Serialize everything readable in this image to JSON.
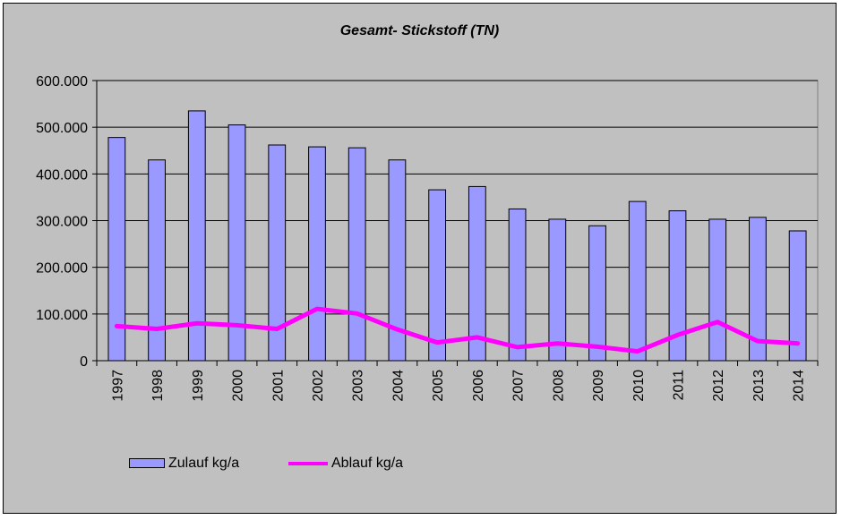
{
  "chart_data": {
    "type": "bar",
    "title": "Gesamt- Stickstoff (TN)",
    "xlabel": "",
    "ylabel": "",
    "categories": [
      "1997",
      "1998",
      "1999",
      "2000",
      "2001",
      "2002",
      "2003",
      "2004",
      "2005",
      "2006",
      "2007",
      "2008",
      "2009",
      "2010",
      "2011",
      "2012",
      "2013",
      "2014"
    ],
    "ylim": [
      0,
      600000
    ],
    "yticks": [
      {
        "value": 0,
        "label": "0"
      },
      {
        "value": 100000,
        "label": "100.000"
      },
      {
        "value": 200000,
        "label": "200.000"
      },
      {
        "value": 300000,
        "label": "300.000"
      },
      {
        "value": 400000,
        "label": "400.000"
      },
      {
        "value": 500000,
        "label": "500.000"
      },
      {
        "value": 600000,
        "label": "600.000"
      }
    ],
    "grid": true,
    "legend_position": "bottom-left",
    "series": [
      {
        "name": "Zulauf kg/a",
        "type": "bar",
        "color": "#9999ff",
        "values": [
          478000,
          430000,
          535000,
          505000,
          462000,
          458000,
          456000,
          430000,
          366000,
          373000,
          325000,
          303000,
          289000,
          341000,
          321000,
          303000,
          307000,
          278000
        ]
      },
      {
        "name": "Ablauf kg/a",
        "type": "line",
        "color": "#ff00ff",
        "values": [
          74000,
          68000,
          80000,
          76000,
          68000,
          111000,
          101000,
          67000,
          39000,
          50000,
          29000,
          37000,
          30000,
          20000,
          55000,
          83000,
          42000,
          37000
        ]
      }
    ]
  }
}
